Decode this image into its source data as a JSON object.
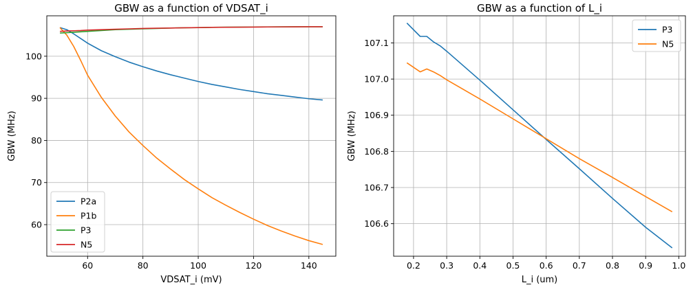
{
  "chart_data": [
    {
      "type": "line",
      "title": "GBW as a function of VDSAT_i",
      "xlabel": "VDSAT_i (mV)",
      "ylabel": "GBW (MHz)",
      "xlim": [
        45.25,
        149.75
      ],
      "ylim": [
        52.5,
        109.6
      ],
      "xticks": [
        60,
        80,
        100,
        120,
        140
      ],
      "yticks": [
        60,
        70,
        80,
        90,
        100
      ],
      "grid": true,
      "legend": "lower-left",
      "x": [
        50,
        52.5,
        55,
        57.5,
        60,
        65,
        70,
        75,
        80,
        85,
        90,
        95,
        100,
        105,
        110,
        115,
        120,
        125,
        130,
        135,
        140,
        145
      ],
      "series": [
        {
          "name": "P2a",
          "color": "#1f77b4",
          "values": [
            106.8,
            106.3,
            105.3,
            104.2,
            103.1,
            101.3,
            99.9,
            98.6,
            97.5,
            96.5,
            95.6,
            94.8,
            94.0,
            93.3,
            92.7,
            92.1,
            91.6,
            91.1,
            90.7,
            90.3,
            89.9,
            89.6
          ]
        },
        {
          "name": "P1b",
          "color": "#ff7f0e",
          "values": [
            106.8,
            105.0,
            102.3,
            99.0,
            95.5,
            90.2,
            85.8,
            82.0,
            78.8,
            75.8,
            73.2,
            70.7,
            68.5,
            66.4,
            64.6,
            62.9,
            61.3,
            59.8,
            58.5,
            57.3,
            56.2,
            55.3
          ]
        },
        {
          "name": "P3",
          "color": "#2ca02c",
          "values": [
            105.5,
            105.6,
            105.7,
            105.8,
            105.9,
            106.1,
            106.3,
            106.4,
            106.5,
            106.6,
            106.7,
            106.75,
            106.8,
            106.85,
            106.9,
            106.92,
            106.95,
            106.97,
            106.98,
            107.0,
            107.0,
            107.0
          ]
        },
        {
          "name": "N5",
          "color": "#d62728",
          "values": [
            105.9,
            106.0,
            106.05,
            106.1,
            106.2,
            106.3,
            106.4,
            106.5,
            106.6,
            106.65,
            106.7,
            106.75,
            106.8,
            106.85,
            106.88,
            106.9,
            106.92,
            106.95,
            106.97,
            106.98,
            107.0,
            107.0
          ]
        }
      ]
    },
    {
      "type": "line",
      "title": "GBW as a function of L_i",
      "xlabel": "L_i (um)",
      "ylabel": "GBW (MHz)",
      "xlim": [
        0.14,
        1.02
      ],
      "ylim": [
        106.51,
        107.175
      ],
      "xticks": [
        0.2,
        0.3,
        0.4,
        0.5,
        0.6,
        0.7,
        0.8,
        0.9,
        1.0
      ],
      "xtick_labels": [
        "0.2",
        "0.3",
        "0.4",
        "0.5",
        "0.6",
        "0.7",
        "0.8",
        "0.9",
        "1.0"
      ],
      "yticks": [
        106.6,
        106.7,
        106.8,
        106.9,
        107.0,
        107.1
      ],
      "ytick_labels": [
        "106.6",
        "106.7",
        "106.8",
        "106.9",
        "107.0",
        "107.1"
      ],
      "grid": true,
      "legend": "top-right",
      "series": [
        {
          "name": "P3",
          "color": "#1f77b4",
          "x": [
            0.18,
            0.22,
            0.24,
            0.26,
            0.28,
            0.3,
            0.4,
            0.5,
            0.6,
            0.7,
            0.8,
            0.9,
            0.98
          ],
          "values": [
            107.155,
            107.118,
            107.118,
            107.103,
            107.092,
            107.077,
            106.997,
            106.915,
            106.833,
            106.752,
            106.67,
            106.59,
            106.533
          ]
        },
        {
          "name": "N5",
          "color": "#ff7f0e",
          "x": [
            0.18,
            0.22,
            0.24,
            0.26,
            0.28,
            0.3,
            0.4,
            0.5,
            0.6,
            0.7,
            0.8,
            0.9,
            0.98
          ],
          "values": [
            107.045,
            107.02,
            107.028,
            107.02,
            107.01,
            106.998,
            106.945,
            106.89,
            106.835,
            106.78,
            106.728,
            106.675,
            106.633
          ]
        }
      ]
    }
  ]
}
